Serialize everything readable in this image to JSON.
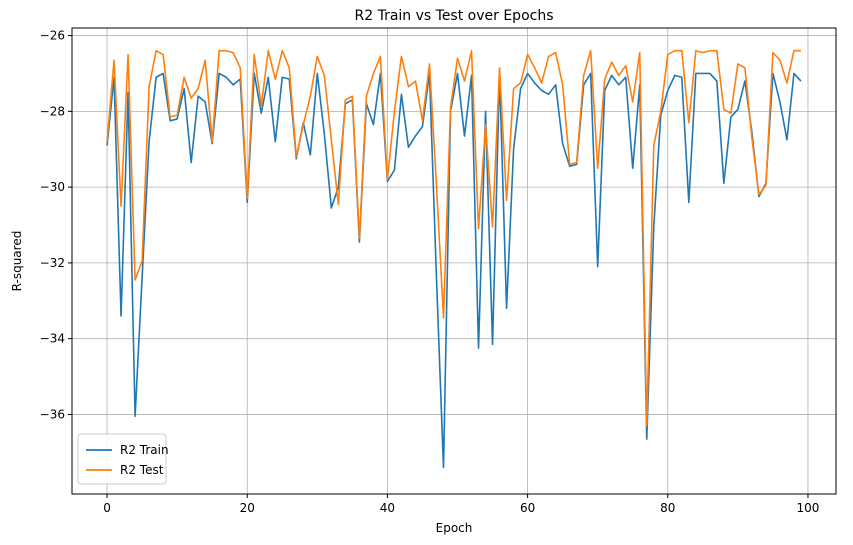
{
  "chart_data": {
    "type": "line",
    "title": "R2 Train vs Test over Epochs",
    "xlabel": "Epoch",
    "ylabel": "R-squared",
    "xlim": [
      -5,
      104
    ],
    "ylim": [
      -38.1,
      -25.8
    ],
    "xticks": [
      0,
      20,
      40,
      60,
      80,
      100
    ],
    "yticks": [
      -36,
      -34,
      -32,
      -30,
      -28,
      -26
    ],
    "grid": true,
    "legend": "lower-left",
    "series": [
      {
        "name": "R2 Train",
        "color": "#1f77b4",
        "values": [
          -28.9,
          -27.1,
          -33.4,
          -27.5,
          -36.05,
          -32.4,
          -28.8,
          -27.1,
          -27.0,
          -28.25,
          -28.2,
          -27.4,
          -29.35,
          -27.6,
          -27.75,
          -28.85,
          -27.0,
          -27.1,
          -27.3,
          -27.15,
          -30.4,
          -27.0,
          -28.05,
          -27.1,
          -28.8,
          -27.1,
          -27.15,
          -29.25,
          -28.3,
          -29.15,
          -27.0,
          -28.6,
          -30.55,
          -30.0,
          -27.8,
          -27.7,
          -31.45,
          -27.8,
          -28.35,
          -27.0,
          -29.85,
          -29.55,
          -27.55,
          -28.95,
          -28.65,
          -28.4,
          -27.0,
          -32.4,
          -37.4,
          -28.0,
          -27.0,
          -28.65,
          -27.05,
          -34.25,
          -28.0,
          -34.15,
          -27.0,
          -33.2,
          -29.0,
          -27.4,
          -27.0,
          -27.25,
          -27.45,
          -27.55,
          -27.3,
          -28.85,
          -29.45,
          -29.4,
          -27.3,
          -27.0,
          -32.1,
          -27.45,
          -27.05,
          -27.3,
          -27.1,
          -29.5,
          -27.3,
          -36.65,
          -31.05,
          -28.1,
          -27.45,
          -27.05,
          -27.1,
          -30.4,
          -27.0,
          -27.0,
          -27.0,
          -27.2,
          -29.9,
          -28.15,
          -27.95,
          -27.2,
          -28.55,
          -30.25,
          -29.9,
          -27.0,
          -27.75,
          -28.75,
          -27.0,
          -27.2
        ]
      },
      {
        "name": "R2 Test",
        "color": "#ff7f0e",
        "values": [
          -28.8,
          -26.65,
          -30.5,
          -26.5,
          -32.45,
          -31.95,
          -27.35,
          -26.4,
          -26.5,
          -28.15,
          -28.1,
          -27.1,
          -27.65,
          -27.4,
          -26.65,
          -28.8,
          -26.4,
          -26.4,
          -26.45,
          -26.85,
          -30.3,
          -26.5,
          -27.85,
          -26.4,
          -27.15,
          -26.4,
          -26.85,
          -29.2,
          -28.35,
          -27.6,
          -26.55,
          -27.05,
          -28.75,
          -30.45,
          -27.7,
          -27.6,
          -31.35,
          -27.6,
          -27.0,
          -26.55,
          -29.8,
          -28.0,
          -26.55,
          -27.35,
          -27.2,
          -28.25,
          -26.75,
          -29.95,
          -33.45,
          -27.9,
          -26.6,
          -27.2,
          -26.4,
          -31.1,
          -28.35,
          -31.05,
          -26.85,
          -30.35,
          -27.4,
          -27.25,
          -26.5,
          -26.85,
          -27.25,
          -26.55,
          -26.45,
          -27.3,
          -29.4,
          -29.35,
          -27.05,
          -26.4,
          -29.5,
          -27.15,
          -26.7,
          -27.05,
          -26.8,
          -27.75,
          -26.45,
          -36.3,
          -28.9,
          -28.0,
          -26.5,
          -26.4,
          -26.4,
          -28.3,
          -26.4,
          -26.45,
          -26.4,
          -26.4,
          -27.95,
          -28.05,
          -26.75,
          -26.85,
          -28.7,
          -30.2,
          -29.95,
          -26.45,
          -26.65,
          -27.25,
          -26.4,
          -26.4
        ]
      }
    ]
  }
}
